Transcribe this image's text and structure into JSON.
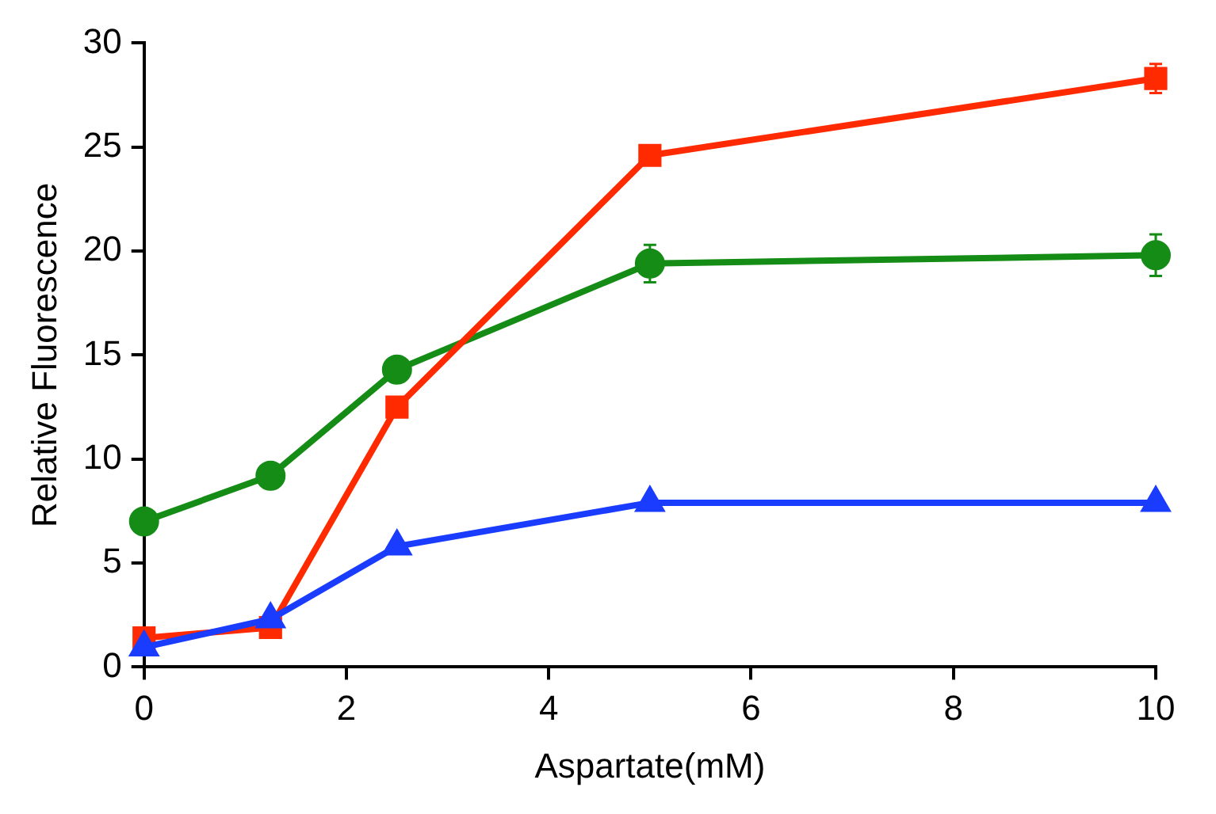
{
  "chart_data": {
    "type": "line",
    "xlabel": "Aspartate(mM)",
    "ylabel": "Relative Fluorescence",
    "x": [
      0,
      1.25,
      2.5,
      5,
      10
    ],
    "xlim": [
      0,
      10
    ],
    "xticks": [
      0,
      2,
      4,
      6,
      8,
      10
    ],
    "ylim": [
      0,
      30
    ],
    "yticks": [
      0,
      5,
      10,
      15,
      20,
      25,
      30
    ],
    "grid": false,
    "legend": false,
    "line_style": "solid",
    "series": [
      {
        "color": "#158c15",
        "marker": "circle",
        "values": [
          7.0,
          9.2,
          14.3,
          19.4,
          19.8
        ],
        "errors": [
          null,
          null,
          null,
          0.9,
          1.0
        ]
      },
      {
        "color": "#ff2a00",
        "marker": "square",
        "values": [
          1.4,
          1.9,
          12.5,
          24.6,
          28.3
        ],
        "errors": [
          null,
          null,
          null,
          null,
          0.7
        ]
      },
      {
        "color": "#1a3cff",
        "marker": "triangle",
        "values": [
          0.95,
          2.3,
          5.8,
          7.9,
          7.9
        ]
      }
    ]
  }
}
